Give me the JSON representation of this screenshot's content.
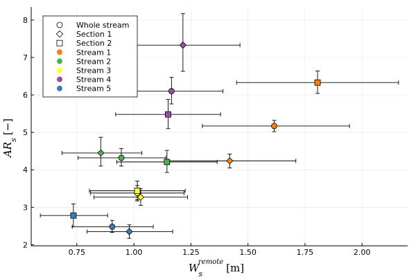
{
  "chart_data": {
    "type": "scatter",
    "title": "",
    "xlabel": "W_s^remote [m]",
    "ylabel": "AR_s [−]",
    "xlabel_main": "W",
    "xlabel_sub": "s",
    "xlabel_sup": "remote",
    "xlabel_unit": "[m]",
    "ylabel_main": "AR",
    "ylabel_sub": "s",
    "ylabel_unit": "[−]",
    "xlim": [
      0.55,
      2.2
    ],
    "ylim": [
      1.97,
      8.35
    ],
    "xticks": [
      0.75,
      1.0,
      1.25,
      1.5,
      1.75,
      2.0
    ],
    "xtick_labels": [
      "0.75",
      "1.00",
      "1.25",
      "1.50",
      "1.75",
      "2.00"
    ],
    "yticks": [
      2,
      3,
      4,
      5,
      6,
      7,
      8
    ],
    "ytick_labels": [
      "2",
      "3",
      "4",
      "5",
      "6",
      "7",
      "8"
    ],
    "grid": true,
    "legend_position": "top-left",
    "legend": [
      {
        "label": "Whole stream",
        "marker": "circle",
        "color": "#ffffff"
      },
      {
        "label": "Section 1",
        "marker": "diamond",
        "color": "#ffffff"
      },
      {
        "label": "Section 2",
        "marker": "square",
        "color": "#ffffff"
      },
      {
        "label": "Stream 1",
        "marker": "dot",
        "color": "#ff7f0e"
      },
      {
        "label": "Stream 2",
        "marker": "dot",
        "color": "#4cb04f"
      },
      {
        "label": "Stream 3",
        "marker": "dot",
        "color": "#ffff33"
      },
      {
        "label": "Stream 4",
        "marker": "dot",
        "color": "#984ea3"
      },
      {
        "label": "Stream 5",
        "marker": "dot",
        "color": "#377eb8"
      }
    ],
    "points": [
      {
        "stream": "Stream 1",
        "section": "Whole stream",
        "marker": "circle",
        "color": "#ff7f0e",
        "x": 1.615,
        "y": 5.17,
        "xerr": [
          1.3,
          1.945
        ],
        "yerr": [
          5.02,
          5.32
        ]
      },
      {
        "stream": "Stream 1",
        "section": "Section 1",
        "marker": "diamond",
        "color": "#ff7f0e",
        "x": 1.42,
        "y": 4.24,
        "xerr": [
          1.14,
          1.71
        ],
        "yerr": [
          4.05,
          4.42
        ]
      },
      {
        "stream": "Stream 1",
        "section": "Section 2",
        "marker": "square",
        "color": "#ff7f0e",
        "x": 1.805,
        "y": 6.33,
        "xerr": [
          1.45,
          2.16
        ],
        "yerr": [
          6.04,
          6.64
        ]
      },
      {
        "stream": "Stream 2",
        "section": "Whole stream",
        "marker": "circle",
        "color": "#4cb04f",
        "x": 0.945,
        "y": 4.32,
        "xerr": [
          0.755,
          1.14
        ],
        "yerr": [
          4.1,
          4.57
        ]
      },
      {
        "stream": "Stream 2",
        "section": "Section 1",
        "marker": "diamond",
        "color": "#4cb04f",
        "x": 0.855,
        "y": 4.45,
        "xerr": [
          0.685,
          1.035
        ],
        "yerr": [
          4.1,
          4.87
        ]
      },
      {
        "stream": "Stream 2",
        "section": "Section 2",
        "marker": "square",
        "color": "#4cb04f",
        "x": 1.145,
        "y": 4.21,
        "xerr": [
          0.925,
          1.365
        ],
        "yerr": [
          3.93,
          4.52
        ]
      },
      {
        "stream": "Stream 3",
        "section": "Whole stream",
        "marker": "circle",
        "color": "#ffff33",
        "x": 1.015,
        "y": 3.38,
        "xerr": [
          0.81,
          1.22
        ],
        "yerr": [
          3.17,
          3.58
        ]
      },
      {
        "stream": "Stream 3",
        "section": "Section 1",
        "marker": "diamond",
        "color": "#ffff33",
        "x": 1.03,
        "y": 3.27,
        "xerr": [
          0.825,
          1.235
        ],
        "yerr": [
          3.05,
          3.5
        ]
      },
      {
        "stream": "Stream 3",
        "section": "Section 2",
        "marker": "square",
        "color": "#ffff33",
        "x": 1.015,
        "y": 3.44,
        "xerr": [
          0.805,
          1.225
        ],
        "yerr": [
          3.2,
          3.7
        ]
      },
      {
        "stream": "Stream 4",
        "section": "Whole stream",
        "marker": "circle",
        "color": "#984ea3",
        "x": 1.165,
        "y": 6.1,
        "xerr": [
          0.935,
          1.39
        ],
        "yerr": [
          5.76,
          6.47
        ]
      },
      {
        "stream": "Stream 4",
        "section": "Section 1",
        "marker": "diamond",
        "color": "#984ea3",
        "x": 1.215,
        "y": 7.33,
        "xerr": [
          0.975,
          1.465
        ],
        "yerr": [
          6.63,
          8.17
        ]
      },
      {
        "stream": "Stream 4",
        "section": "Section 2",
        "marker": "square",
        "color": "#984ea3",
        "x": 1.15,
        "y": 5.48,
        "xerr": [
          0.92,
          1.38
        ],
        "yerr": [
          5.1,
          5.88
        ]
      },
      {
        "stream": "Stream 5",
        "section": "Whole stream",
        "marker": "circle",
        "color": "#377eb8",
        "x": 0.905,
        "y": 2.48,
        "xerr": [
          0.73,
          1.085
        ],
        "yerr": [
          2.33,
          2.65
        ]
      },
      {
        "stream": "Stream 5",
        "section": "Section 1",
        "marker": "diamond",
        "color": "#377eb8",
        "x": 0.98,
        "y": 2.35,
        "xerr": [
          0.795,
          1.17
        ],
        "yerr": [
          2.17,
          2.53
        ]
      },
      {
        "stream": "Stream 5",
        "section": "Section 2",
        "marker": "square",
        "color": "#377eb8",
        "x": 0.735,
        "y": 2.78,
        "xerr": [
          0.59,
          0.885
        ],
        "yerr": [
          2.48,
          3.09
        ]
      }
    ]
  }
}
